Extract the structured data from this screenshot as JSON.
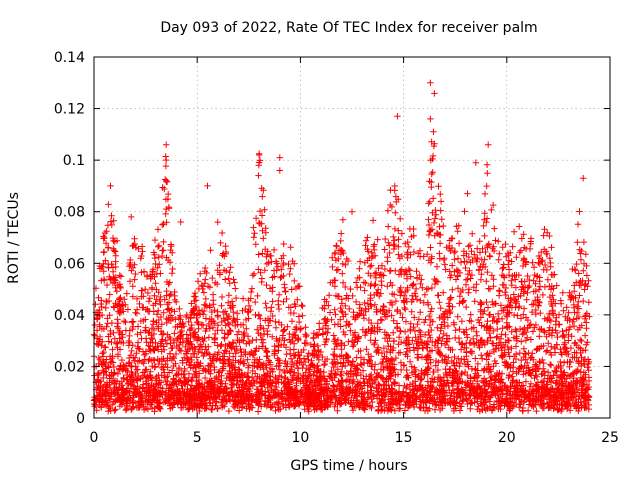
{
  "chart_data": {
    "type": "scatter",
    "title": "Day 093 of 2022, Rate Of TEC Index for receiver palm",
    "xlabel": "GPS time / hours",
    "ylabel": "ROTI / TECUs",
    "xlim": [
      0,
      25
    ],
    "ylim": [
      0,
      0.14
    ],
    "x_ticks": [
      0,
      5,
      10,
      15,
      20,
      25
    ],
    "x_tick_labels": [
      "0",
      "5",
      "10",
      "15",
      "20",
      "25"
    ],
    "y_ticks": [
      0,
      0.02,
      0.04,
      0.06,
      0.08,
      0.1,
      0.12,
      0.14
    ],
    "y_tick_labels": [
      "0",
      "0.02",
      "0.04",
      "0.06",
      "0.08",
      "0.1",
      "0.12",
      "0.14"
    ],
    "grid": true,
    "marker": "+",
    "color": "#ff0000",
    "data_x_range_hours": [
      0,
      24
    ],
    "series": [
      {
        "name": "palm",
        "envelope_hours": [
          0.0,
          0.3,
          0.7,
          1.0,
          1.5,
          1.8,
          2.2,
          2.6,
          3.0,
          3.5,
          4.0,
          4.5,
          5.0,
          5.5,
          6.0,
          6.5,
          7.0,
          7.5,
          8.0,
          8.5,
          9.0,
          9.5,
          10.0,
          10.5,
          11.0,
          11.5,
          12.0,
          12.5,
          13.0,
          13.5,
          14.0,
          14.5,
          15.0,
          15.5,
          16.0,
          16.5,
          17.0,
          17.5,
          18.0,
          18.5,
          19.0,
          19.5,
          20.0,
          20.5,
          21.0,
          21.5,
          22.0,
          22.5,
          23.0,
          23.5,
          24.0
        ],
        "envelope_roti": [
          0.045,
          0.055,
          0.085,
          0.07,
          0.04,
          0.065,
          0.07,
          0.055,
          0.065,
          0.1,
          0.04,
          0.035,
          0.05,
          0.055,
          0.07,
          0.06,
          0.04,
          0.045,
          0.1,
          0.065,
          0.06,
          0.065,
          0.045,
          0.025,
          0.035,
          0.055,
          0.075,
          0.05,
          0.06,
          0.08,
          0.055,
          0.11,
          0.065,
          0.075,
          0.06,
          0.125,
          0.07,
          0.065,
          0.095,
          0.06,
          0.1,
          0.065,
          0.06,
          0.075,
          0.07,
          0.06,
          0.075,
          0.045,
          0.04,
          0.085,
          0.045
        ],
        "baseline_roti": 0.01,
        "notable_points": [
          {
            "x": 16.3,
            "y": 0.13
          },
          {
            "x": 14.7,
            "y": 0.117
          },
          {
            "x": 16.3,
            "y": 0.116
          },
          {
            "x": 3.5,
            "y": 0.106
          },
          {
            "x": 19.1,
            "y": 0.106
          },
          {
            "x": 8.0,
            "y": 0.102
          },
          {
            "x": 9.0,
            "y": 0.101
          },
          {
            "x": 3.5,
            "y": 0.1
          },
          {
            "x": 18.5,
            "y": 0.099
          },
          {
            "x": 3.5,
            "y": 0.092
          },
          {
            "x": 5.5,
            "y": 0.09
          },
          {
            "x": 0.8,
            "y": 0.09
          },
          {
            "x": 23.7,
            "y": 0.093
          },
          {
            "x": 3.5,
            "y": 0.081
          },
          {
            "x": 4.2,
            "y": 0.076
          },
          {
            "x": 9.0,
            "y": 0.096
          },
          {
            "x": 1.8,
            "y": 0.078
          },
          {
            "x": 12.5,
            "y": 0.08
          }
        ]
      }
    ]
  }
}
